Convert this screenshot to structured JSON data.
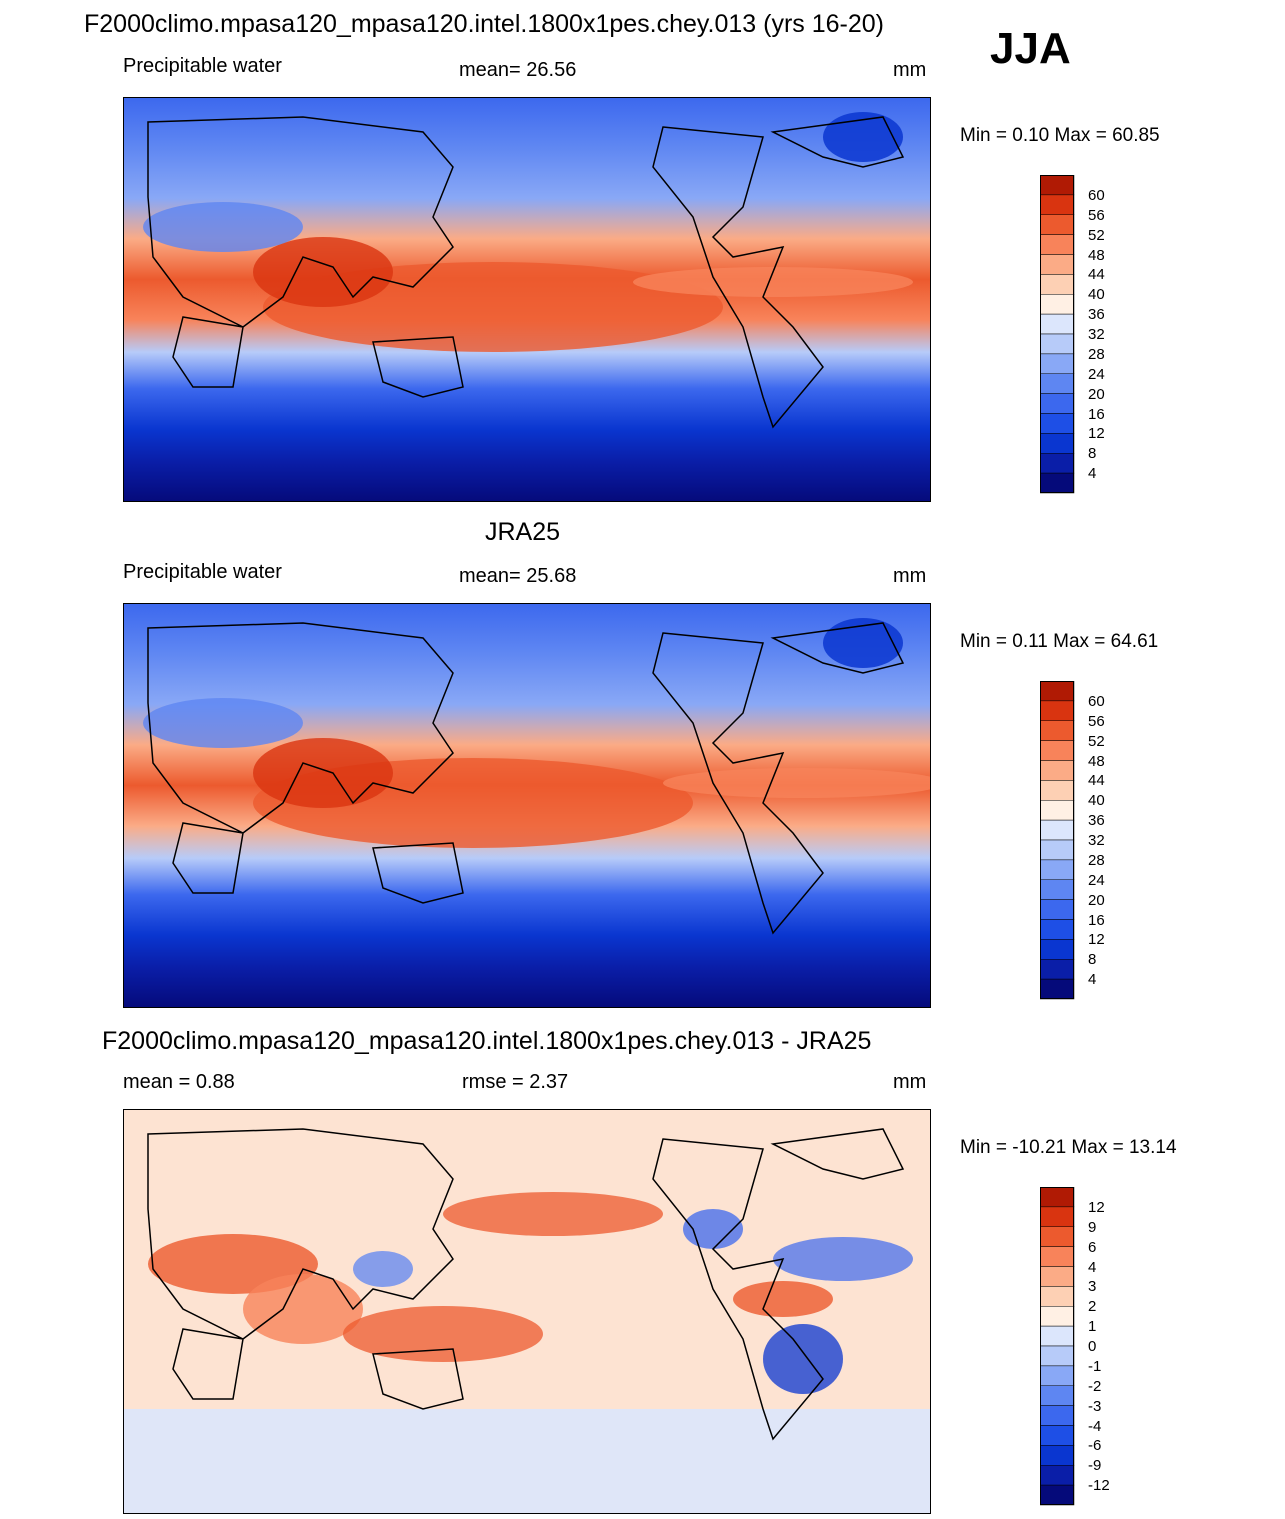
{
  "season": "JJA",
  "colors": {
    "bg": "#ffffff",
    "ink": "#000000",
    "ocean_frame": "#0a0a60",
    "diff_neutral": "#fde3d2"
  },
  "panels": [
    {
      "title": "F2000climo.mpasa120_mpasa120.intel.1800x1pes.chey.013 (yrs 16-20)",
      "variable": "Precipitable water",
      "stat_text": "mean=  26.56",
      "units": "mm",
      "minmax": "Min =    0.10 Max =  60.85"
    },
    {
      "title": "JRA25",
      "variable": "Precipitable water",
      "stat_text": "mean=  25.68",
      "units": "mm",
      "minmax": "Min =    0.11 Max =  64.61"
    },
    {
      "title": "F2000climo.mpasa120_mpasa120.intel.1800x1pes.chey.013 - JRA25",
      "variable": "mean =   0.88",
      "stat_text": "rmse =    2.37",
      "units": "mm",
      "minmax": "Min = -10.21 Max =  13.14"
    }
  ],
  "chart_data": [
    {
      "type": "heatmap",
      "title": "F2000climo.mpasa120_mpasa120.intel.1800x1pes.chey.013 (yrs 16-20)",
      "variable": "Precipitable water",
      "units": "mm",
      "mean": 26.56,
      "min": 0.1,
      "max": 60.85,
      "colorbar_levels": [
        4,
        8,
        12,
        16,
        20,
        24,
        28,
        32,
        36,
        40,
        44,
        48,
        52,
        56,
        60
      ],
      "colorbar_colors": [
        "#050a7a",
        "#0a1ea8",
        "#0a36d0",
        "#1e4fe6",
        "#3c68ee",
        "#5e86f2",
        "#89a8f6",
        "#b7cbf9",
        "#dce6fc",
        "#fff0e4",
        "#fdd0b4",
        "#fbab86",
        "#f8835a",
        "#ec5a2e",
        "#d93410",
        "#b01a04"
      ]
    },
    {
      "type": "heatmap",
      "title": "JRA25",
      "variable": "Precipitable water",
      "units": "mm",
      "mean": 25.68,
      "min": 0.11,
      "max": 64.61,
      "colorbar_levels": [
        4,
        8,
        12,
        16,
        20,
        24,
        28,
        32,
        36,
        40,
        44,
        48,
        52,
        56,
        60
      ],
      "colorbar_colors": [
        "#050a7a",
        "#0a1ea8",
        "#0a36d0",
        "#1e4fe6",
        "#3c68ee",
        "#5e86f2",
        "#89a8f6",
        "#b7cbf9",
        "#dce6fc",
        "#fff0e4",
        "#fdd0b4",
        "#fbab86",
        "#f8835a",
        "#ec5a2e",
        "#d93410",
        "#b01a04"
      ]
    },
    {
      "type": "heatmap",
      "title": "F2000climo.mpasa120_mpasa120.intel.1800x1pes.chey.013 - JRA25",
      "units": "mm",
      "mean": 0.88,
      "rmse": 2.37,
      "min": -10.21,
      "max": 13.14,
      "colorbar_levels": [
        -12,
        -9,
        -6,
        -4,
        -3,
        -2,
        -1,
        0,
        1,
        2,
        3,
        4,
        6,
        9,
        12
      ],
      "colorbar_colors": [
        "#050a7a",
        "#0a1ea8",
        "#0a36d0",
        "#1e4fe6",
        "#3c68ee",
        "#5e86f2",
        "#89a8f6",
        "#b7cbf9",
        "#dce6fc",
        "#fff0e4",
        "#fdd0b4",
        "#fbab86",
        "#f8835a",
        "#ec5a2e",
        "#d93410",
        "#b01a04"
      ]
    }
  ]
}
